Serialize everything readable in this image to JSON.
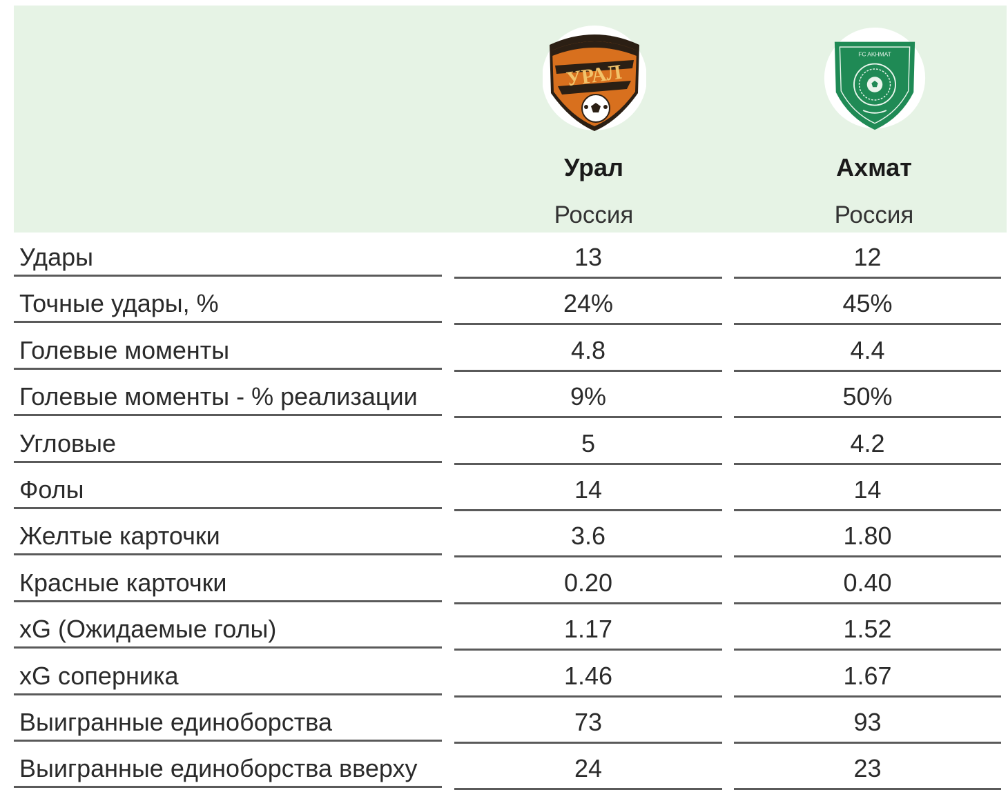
{
  "teams": [
    {
      "name": "Урал",
      "country": "Россия",
      "logo_icon": "ural-club-crest-icon",
      "logo_text": "УРАЛ"
    },
    {
      "name": "Ахмат",
      "country": "Россия",
      "logo_icon": "akhmat-club-crest-icon",
      "logo_text": "FC AKHMAT"
    }
  ],
  "colors": {
    "header_bg": "#e6f3e5",
    "ural_orange": "#d8701e",
    "akhmat_green": "#1f8a55",
    "rule": "#5a5a5a"
  },
  "rows": [
    {
      "label": "Удары",
      "v1": "13",
      "v2": "12"
    },
    {
      "label": "Точные удары, %",
      "v1": "24%",
      "v2": "45%"
    },
    {
      "label": "Голевые моменты",
      "v1": "4.8",
      "v2": "4.4"
    },
    {
      "label": "Голевые моменты - % реализации",
      "v1": "9%",
      "v2": "50%"
    },
    {
      "label": "Угловые",
      "v1": "5",
      "v2": "4.2"
    },
    {
      "label": "Фолы",
      "v1": "14",
      "v2": "14"
    },
    {
      "label": "Желтые карточки",
      "v1": "3.6",
      "v2": "1.80"
    },
    {
      "label": "Красные карточки",
      "v1": "0.20",
      "v2": "0.40"
    },
    {
      "label": "xG (Ожидаемые голы)",
      "v1": "1.17",
      "v2": "1.52"
    },
    {
      "label": "xG соперника",
      "v1": "1.46",
      "v2": "1.67"
    },
    {
      "label": "Выигранные единоборства",
      "v1": "73",
      "v2": "93"
    },
    {
      "label": "Выигранные единоборства вверху",
      "v1": "24",
      "v2": "23"
    }
  ]
}
